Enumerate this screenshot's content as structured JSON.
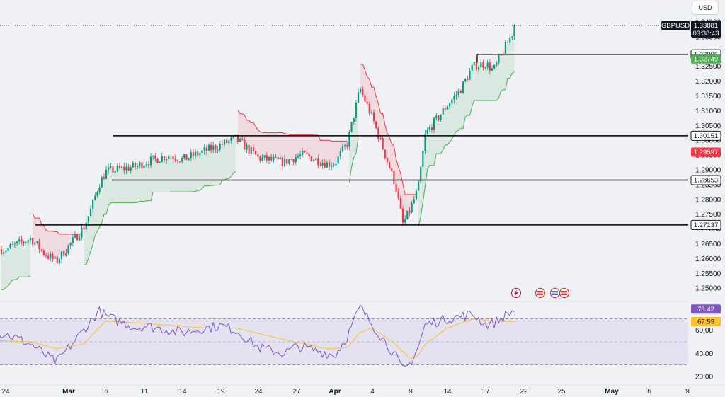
{
  "currency_label": "USD",
  "symbol": "GBPUSD",
  "last_price": "1.33881",
  "countdown": "03:38:43",
  "colors": {
    "up": "#089981",
    "down": "#f23645",
    "supertrend_up": "#4caf50",
    "supertrend_down": "#f23645",
    "rsi_line": "#7e57c2",
    "rsi_ma": "#fbc02d",
    "rsi_band": "#7e57c2",
    "background": "#f0f1f5"
  },
  "markers": {
    "lightning_icon": "lightning-icon",
    "flag_icons": [
      "uk-us-flag-icon",
      "us-flag-icon",
      "uk-flag-icon"
    ]
  },
  "price_axis": {
    "range": [
      1.2455,
      1.3455
    ],
    "ticks": [
      "1.25000",
      "1.25500",
      "1.26000",
      "1.26500",
      "1.27000",
      "1.27500",
      "1.28000",
      "1.28500",
      "1.29000",
      "1.29500",
      "1.30000",
      "1.30500",
      "1.31000",
      "1.31500",
      "1.32000",
      "1.32500",
      "1.33000",
      "1.33500",
      "1.34000"
    ]
  },
  "rsi_axis": {
    "range": [
      15,
      85
    ],
    "ticks": [
      "20.00",
      "40.00",
      "60.00"
    ],
    "upper_band": 70,
    "lower_band": 30,
    "mid_band": 50
  },
  "date_axis": {
    "labels": [
      "24",
      "Mar",
      "6",
      "11",
      "14",
      "19",
      "24",
      "27",
      "Apr",
      "4",
      "9",
      "14",
      "17",
      "22",
      "25",
      "May",
      "6",
      "9"
    ]
  },
  "badges": {
    "symbol_price": "1.33881",
    "level_1": "1.32905",
    "supertrend": "1.32749",
    "level_2": "1.30151",
    "supertrend_down": "1.29597",
    "level_3": "1.28653",
    "level_4": "1.27137",
    "rsi": "78.42",
    "rsi_ma": "67.53"
  },
  "chart_data": [
    {
      "type": "candlestick",
      "title": "",
      "symbol": "GBPUSD",
      "ylim": [
        1.2455,
        1.3455
      ],
      "last_price": 1.33881,
      "horizontal_levels": [
        1.32905,
        1.30151,
        1.28653,
        1.27137
      ],
      "supertrend_last": 1.32749,
      "supertrend_down_last": 1.29597,
      "close_path": [
        [
          "Feb 21",
          1.2625
        ],
        [
          "Feb 24",
          1.2632
        ],
        [
          "Feb 26",
          1.2668
        ],
        [
          "Feb 27",
          1.262
        ],
        [
          "Feb 28",
          1.259
        ],
        [
          "Mar 3",
          1.2705
        ],
        [
          "Mar 4",
          1.2768
        ],
        [
          "Mar 5",
          1.285
        ],
        [
          "Mar 6",
          1.2895
        ],
        [
          "Mar 10",
          1.2912
        ],
        [
          "Mar 11",
          1.2925
        ],
        [
          "Mar 13",
          1.295
        ],
        [
          "Mar 14",
          1.2935
        ],
        [
          "Mar 17",
          1.2965
        ],
        [
          "Mar 19",
          1.2985
        ],
        [
          "Mar 20",
          1.2995
        ],
        [
          "Mar 21",
          1.3005
        ],
        [
          "Mar 24",
          1.294
        ],
        [
          "Mar 26",
          1.2925
        ],
        [
          "Mar 27",
          1.2945
        ],
        [
          "Mar 28",
          1.295
        ],
        [
          "Mar 31",
          1.292
        ],
        [
          "Apr 1",
          1.2922
        ],
        [
          "Apr 2",
          1.299
        ],
        [
          "Apr 3",
          1.3175
        ],
        [
          "Apr 4",
          1.3075
        ],
        [
          "Apr 7",
          1.285
        ],
        [
          "Apr 8",
          1.2715
        ],
        [
          "Apr 9",
          1.277
        ],
        [
          "Apr 10",
          1.2835
        ],
        [
          "Apr 11",
          1.302
        ],
        [
          "Apr 14",
          1.312
        ],
        [
          "Apr 15",
          1.317
        ],
        [
          "Apr 16",
          1.325
        ],
        [
          "Apr 17",
          1.326
        ],
        [
          "Apr 18",
          1.3235
        ],
        [
          "Apr 21",
          1.3388
        ]
      ]
    },
    {
      "type": "line",
      "title": "",
      "ylim": [
        15,
        85
      ],
      "series": [
        {
          "values": [
            [
              "Feb 21",
              55
            ],
            [
              "Feb 24",
              57
            ],
            [
              "Feb 26",
              48
            ],
            [
              "Feb 27",
              40
            ],
            [
              "Feb 28",
              32
            ],
            [
              "Mar 3",
              60
            ],
            [
              "Mar 4",
              68
            ],
            [
              "Mar 5",
              77
            ],
            [
              "Mar 6",
              72
            ],
            [
              "Mar 10",
              62
            ],
            [
              "Mar 11",
              64
            ],
            [
              "Mar 13",
              60
            ],
            [
              "Mar 14",
              58
            ],
            [
              "Mar 17",
              62
            ],
            [
              "Mar 19",
              64
            ],
            [
              "Mar 20",
              62
            ],
            [
              "Mar 21",
              60
            ],
            [
              "Mar 24",
              45
            ],
            [
              "Mar 26",
              40
            ],
            [
              "Mar 27",
              46
            ],
            [
              "Mar 28",
              45
            ],
            [
              "Mar 31",
              40
            ],
            [
              "Apr 1",
              38
            ],
            [
              "Apr 2",
              55
            ],
            [
              "Apr 3",
              80
            ],
            [
              "Apr 4",
              65
            ],
            [
              "Apr 7",
              38
            ],
            [
              "Apr 8",
              25
            ],
            [
              "Apr 9",
              32
            ],
            [
              "Apr 10",
              45
            ],
            [
              "Apr 11",
              65
            ],
            [
              "Apr 14",
              70
            ],
            [
              "Apr 15",
              72
            ],
            [
              "Apr 16",
              74
            ],
            [
              "Apr 17",
              65
            ],
            [
              "Apr 18",
              66
            ],
            [
              "Apr 21",
              78.42
            ]
          ]
        },
        {
          "values": [
            [
              "Feb 21",
              52
            ],
            [
              "Feb 26",
              50
            ],
            [
              "Feb 28",
              44
            ],
            [
              "Mar 3",
              48
            ],
            [
              "Mar 5",
              62
            ],
            [
              "Mar 6",
              68
            ],
            [
              "Mar 11",
              66
            ],
            [
              "Mar 17",
              62
            ],
            [
              "Mar 21",
              62
            ],
            [
              "Mar 26",
              52
            ],
            [
              "Mar 31",
              44
            ],
            [
              "Apr 2",
              45
            ],
            [
              "Apr 3",
              58
            ],
            [
              "Apr 4",
              62
            ],
            [
              "Apr 7",
              48
            ],
            [
              "Apr 9",
              35
            ],
            [
              "Apr 10",
              38
            ],
            [
              "Apr 11",
              48
            ],
            [
              "Apr 14",
              62
            ],
            [
              "Apr 16",
              70
            ],
            [
              "Apr 18",
              68
            ],
            [
              "Apr 21",
              67.53
            ]
          ]
        }
      ]
    }
  ]
}
